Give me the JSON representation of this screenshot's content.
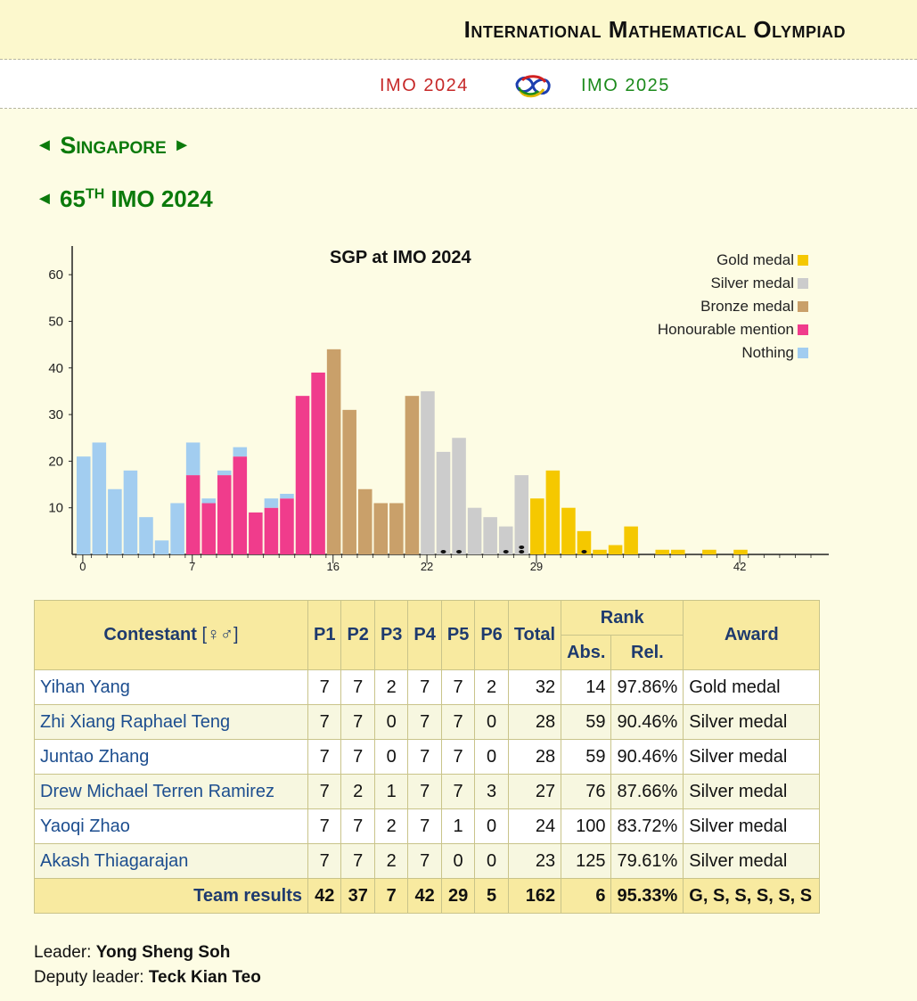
{
  "header": {
    "site_title": "International Mathematical Olympiad",
    "prev_edition": "IMO 2024",
    "next_edition": "IMO 2025"
  },
  "country": {
    "prev_arrow": "◄",
    "name": "Singapore",
    "next_arrow": "►"
  },
  "edition": {
    "prev_arrow": "◄",
    "number": "65",
    "ordinal": "TH",
    "name": "IMO 2024"
  },
  "colors": {
    "gold": "#f5c800",
    "silver": "#cccccc",
    "bronze": "#c9a06a",
    "honourable": "#f03c8c",
    "nothing": "#a2cdf0",
    "heading_green": "#0b7a0b"
  },
  "chart_data": {
    "type": "bar",
    "title": "SGP at IMO 2024",
    "ylim": [
      0,
      65
    ],
    "yticks": [
      10,
      20,
      30,
      40,
      50,
      60
    ],
    "xticks": [
      0,
      7,
      16,
      22,
      29,
      42
    ],
    "xlim": [
      0,
      47
    ],
    "legend_position": "top-right",
    "legend": [
      "Gold medal",
      "Silver medal",
      "Bronze medal",
      "Honourable mention",
      "Nothing"
    ],
    "bars": [
      {
        "score": 0,
        "count": 21,
        "parts": [
          {
            "cat": "nothing",
            "v": 21
          }
        ]
      },
      {
        "score": 1,
        "count": 24,
        "parts": [
          {
            "cat": "nothing",
            "v": 24
          }
        ]
      },
      {
        "score": 2,
        "count": 14,
        "parts": [
          {
            "cat": "nothing",
            "v": 14
          }
        ]
      },
      {
        "score": 3,
        "count": 18,
        "parts": [
          {
            "cat": "nothing",
            "v": 18
          }
        ]
      },
      {
        "score": 4,
        "count": 8,
        "parts": [
          {
            "cat": "nothing",
            "v": 8
          }
        ]
      },
      {
        "score": 5,
        "count": 3,
        "parts": [
          {
            "cat": "nothing",
            "v": 3
          }
        ]
      },
      {
        "score": 6,
        "count": 11,
        "parts": [
          {
            "cat": "nothing",
            "v": 11
          }
        ]
      },
      {
        "score": 7,
        "count": 24,
        "parts": [
          {
            "cat": "honourable",
            "v": 17
          },
          {
            "cat": "nothing",
            "v": 7
          }
        ]
      },
      {
        "score": 8,
        "count": 12,
        "parts": [
          {
            "cat": "honourable",
            "v": 11
          },
          {
            "cat": "nothing",
            "v": 1
          }
        ]
      },
      {
        "score": 9,
        "count": 18,
        "parts": [
          {
            "cat": "honourable",
            "v": 17
          },
          {
            "cat": "nothing",
            "v": 1
          }
        ]
      },
      {
        "score": 10,
        "count": 23,
        "parts": [
          {
            "cat": "honourable",
            "v": 21
          },
          {
            "cat": "nothing",
            "v": 2
          }
        ]
      },
      {
        "score": 11,
        "count": 9,
        "parts": [
          {
            "cat": "honourable",
            "v": 9
          }
        ]
      },
      {
        "score": 12,
        "count": 12,
        "parts": [
          {
            "cat": "honourable",
            "v": 10
          },
          {
            "cat": "nothing",
            "v": 2
          }
        ]
      },
      {
        "score": 13,
        "count": 13,
        "parts": [
          {
            "cat": "honourable",
            "v": 12
          },
          {
            "cat": "nothing",
            "v": 1
          }
        ]
      },
      {
        "score": 14,
        "count": 34,
        "parts": [
          {
            "cat": "honourable",
            "v": 34
          }
        ]
      },
      {
        "score": 15,
        "count": 39,
        "parts": [
          {
            "cat": "honourable",
            "v": 39
          }
        ]
      },
      {
        "score": 16,
        "count": 44,
        "parts": [
          {
            "cat": "bronze",
            "v": 44
          }
        ]
      },
      {
        "score": 17,
        "count": 31,
        "parts": [
          {
            "cat": "bronze",
            "v": 31
          }
        ]
      },
      {
        "score": 18,
        "count": 14,
        "parts": [
          {
            "cat": "bronze",
            "v": 14
          }
        ]
      },
      {
        "score": 19,
        "count": 11,
        "parts": [
          {
            "cat": "bronze",
            "v": 11
          }
        ]
      },
      {
        "score": 20,
        "count": 11,
        "parts": [
          {
            "cat": "bronze",
            "v": 11
          }
        ]
      },
      {
        "score": 21,
        "count": 34,
        "parts": [
          {
            "cat": "bronze",
            "v": 34
          }
        ]
      },
      {
        "score": 22,
        "count": 35,
        "parts": [
          {
            "cat": "silver",
            "v": 35
          }
        ]
      },
      {
        "score": 23,
        "count": 22,
        "parts": [
          {
            "cat": "silver",
            "v": 22
          }
        ]
      },
      {
        "score": 24,
        "count": 25,
        "parts": [
          {
            "cat": "silver",
            "v": 25
          }
        ]
      },
      {
        "score": 25,
        "count": 10,
        "parts": [
          {
            "cat": "silver",
            "v": 10
          }
        ]
      },
      {
        "score": 26,
        "count": 8,
        "parts": [
          {
            "cat": "silver",
            "v": 8
          }
        ]
      },
      {
        "score": 27,
        "count": 6,
        "parts": [
          {
            "cat": "silver",
            "v": 6
          }
        ]
      },
      {
        "score": 28,
        "count": 17,
        "parts": [
          {
            "cat": "silver",
            "v": 17
          }
        ]
      },
      {
        "score": 29,
        "count": 12,
        "parts": [
          {
            "cat": "gold",
            "v": 12
          }
        ]
      },
      {
        "score": 30,
        "count": 18,
        "parts": [
          {
            "cat": "gold",
            "v": 18
          }
        ]
      },
      {
        "score": 31,
        "count": 10,
        "parts": [
          {
            "cat": "gold",
            "v": 10
          }
        ]
      },
      {
        "score": 32,
        "count": 5,
        "parts": [
          {
            "cat": "gold",
            "v": 5
          }
        ]
      },
      {
        "score": 33,
        "count": 1,
        "parts": [
          {
            "cat": "gold",
            "v": 1
          }
        ]
      },
      {
        "score": 34,
        "count": 2,
        "parts": [
          {
            "cat": "gold",
            "v": 2
          }
        ]
      },
      {
        "score": 35,
        "count": 6,
        "parts": [
          {
            "cat": "gold",
            "v": 6
          }
        ]
      },
      {
        "score": 37,
        "count": 1,
        "parts": [
          {
            "cat": "gold",
            "v": 1
          }
        ]
      },
      {
        "score": 38,
        "count": 1,
        "parts": [
          {
            "cat": "gold",
            "v": 1
          }
        ]
      },
      {
        "score": 40,
        "count": 1,
        "parts": [
          {
            "cat": "gold",
            "v": 1
          }
        ]
      },
      {
        "score": 42,
        "count": 1,
        "parts": [
          {
            "cat": "gold",
            "v": 1
          }
        ]
      }
    ],
    "team_markers": [
      {
        "score": 23,
        "count": 1
      },
      {
        "score": 24,
        "count": 1
      },
      {
        "score": 27,
        "count": 1
      },
      {
        "score": 28,
        "count": 2
      },
      {
        "score": 32,
        "count": 1
      }
    ]
  },
  "table": {
    "headers": {
      "contestant": "Contestant",
      "gender_symbols": "[♀♂]",
      "problems": [
        "P1",
        "P2",
        "P3",
        "P4",
        "P5",
        "P6"
      ],
      "total": "Total",
      "rank": "Rank",
      "abs": "Abs.",
      "rel": "Rel.",
      "award": "Award"
    },
    "rows": [
      {
        "name": "Yihan Yang",
        "scores": [
          "7",
          "7",
          "2",
          "7",
          "7",
          "2"
        ],
        "total": "32",
        "abs": "14",
        "rel": "97.86%",
        "award": "Gold medal"
      },
      {
        "name": "Zhi Xiang Raphael Teng",
        "scores": [
          "7",
          "7",
          "0",
          "7",
          "7",
          "0"
        ],
        "total": "28",
        "abs": "59",
        "rel": "90.46%",
        "award": "Silver medal"
      },
      {
        "name": "Juntao Zhang",
        "scores": [
          "7",
          "7",
          "0",
          "7",
          "7",
          "0"
        ],
        "total": "28",
        "abs": "59",
        "rel": "90.46%",
        "award": "Silver medal"
      },
      {
        "name": "Drew Michael Terren Ramirez",
        "scores": [
          "7",
          "2",
          "1",
          "7",
          "7",
          "3"
        ],
        "total": "27",
        "abs": "76",
        "rel": "87.66%",
        "award": "Silver medal"
      },
      {
        "name": "Yaoqi Zhao",
        "scores": [
          "7",
          "7",
          "2",
          "7",
          "1",
          "0"
        ],
        "total": "24",
        "abs": "100",
        "rel": "83.72%",
        "award": "Silver medal"
      },
      {
        "name": "Akash Thiagarajan",
        "scores": [
          "7",
          "7",
          "2",
          "7",
          "0",
          "0"
        ],
        "total": "23",
        "abs": "125",
        "rel": "79.61%",
        "award": "Silver medal"
      }
    ],
    "team": {
      "label": "Team results",
      "scores": [
        "42",
        "37",
        "7",
        "42",
        "29",
        "5"
      ],
      "total": "162",
      "abs": "6",
      "rel": "95.33%",
      "award": "G, S, S, S, S, S"
    }
  },
  "leaders": {
    "leader_label": "Leader:",
    "leader_name": "Yong Sheng Soh",
    "deputy_label": "Deputy leader:",
    "deputy_name": "Teck Kian Teo"
  }
}
